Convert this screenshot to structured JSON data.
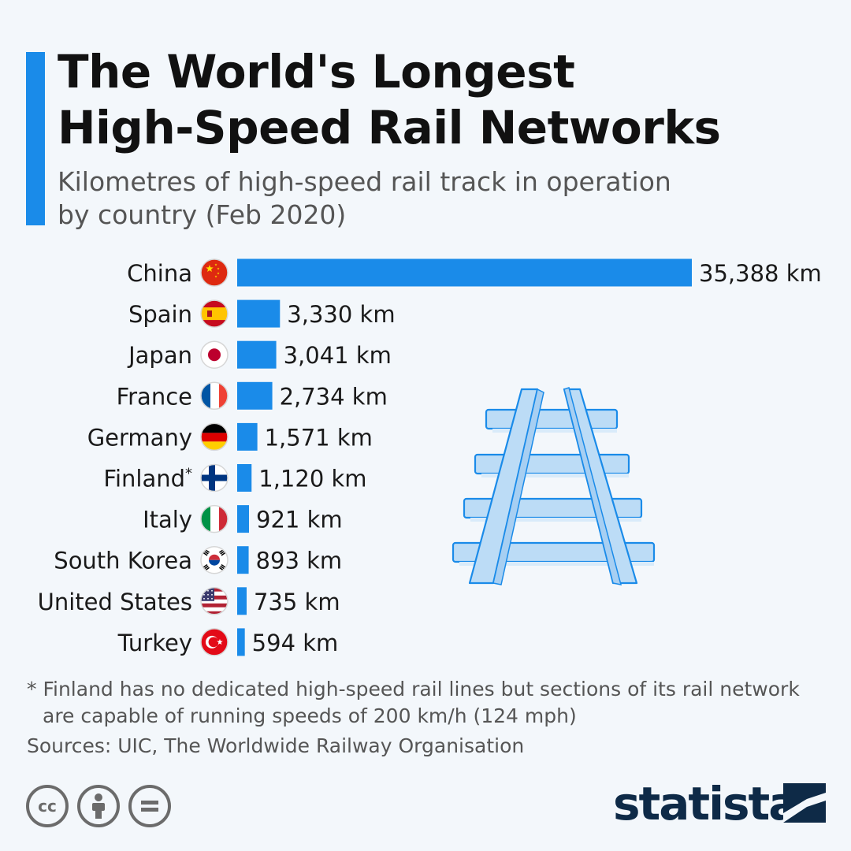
{
  "header": {
    "title_line1": "The World's Longest",
    "title_line2": "High-Speed Rail Networks",
    "subtitle_line1": "Kilometres of high-speed rail track in operation",
    "subtitle_line2": "by country (Feb 2020)"
  },
  "colors": {
    "accent": "#1a8be9",
    "bar": "#1a8be9",
    "illustration_fill": "#bcdcf6",
    "illustration_stroke": "#1a8be9",
    "brand": "#0e2a47"
  },
  "chart_data": {
    "type": "bar",
    "orientation": "horizontal",
    "categories": [
      "China",
      "Spain",
      "Japan",
      "France",
      "Germany",
      "Finland",
      "Italy",
      "South Korea",
      "United States",
      "Turkey"
    ],
    "values": [
      35388,
      3330,
      3041,
      2734,
      1571,
      1120,
      921,
      893,
      735,
      594
    ],
    "value_labels": [
      "35,388 km",
      "3,330 km",
      "3,041 km",
      "2,734 km",
      "1,571 km",
      "1,120 km",
      "921 km",
      "893 km",
      "735 km",
      "594 km"
    ],
    "category_marks": [
      "",
      "",
      "",
      "",
      "",
      "*",
      "",
      "",
      "",
      ""
    ],
    "flag_icons": [
      "china-flag-icon",
      "spain-flag-icon",
      "japan-flag-icon",
      "france-flag-icon",
      "germany-flag-icon",
      "finland-flag-icon",
      "italy-flag-icon",
      "south-korea-flag-icon",
      "united-states-flag-icon",
      "turkey-flag-icon"
    ],
    "unit": "km",
    "xlim": [
      0,
      35388
    ],
    "grid": false
  },
  "illustration": {
    "icon": "railway-track-icon"
  },
  "footnote": {
    "line1": "* Finland has no dedicated high-speed rail lines but sections of its rail network",
    "line2": "are capable of running speeds of 200 km/h (124 mph)"
  },
  "sources": "Sources: UIC, The Worldwide Railway Organisation",
  "license_icons": [
    "cc-icon",
    "attribution-icon",
    "no-derivatives-icon"
  ],
  "cc_text": "cc",
  "brand": {
    "name": "statista",
    "icon": "statista-logo-icon"
  }
}
